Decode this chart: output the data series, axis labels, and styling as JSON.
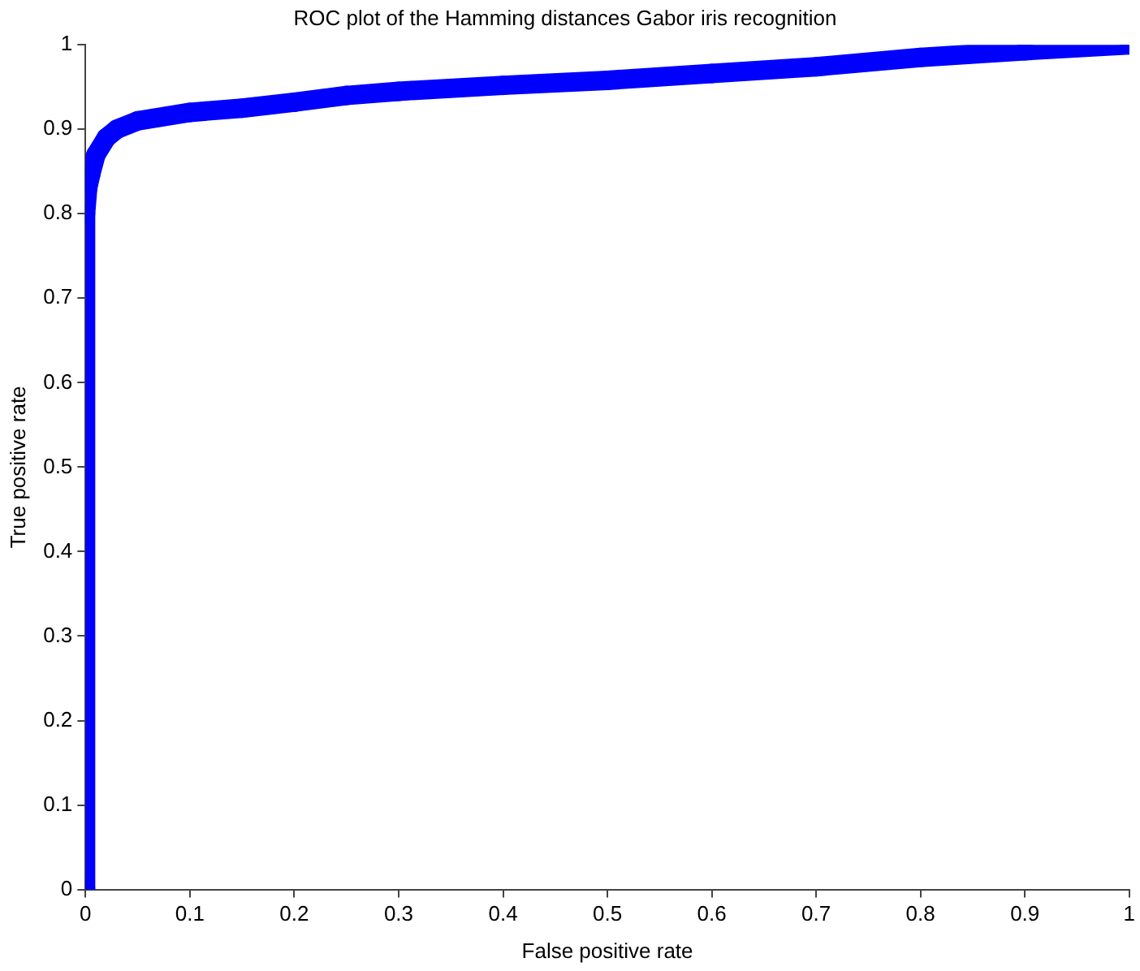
{
  "chart_data": {
    "type": "line",
    "title": "ROC plot of the Hamming distances Gabor iris recognition",
    "xlabel": "False positive rate",
    "ylabel": "True positive rate",
    "x": [
      0,
      0,
      0.002,
      0.005,
      0.01,
      0.02,
      0.03,
      0.05,
      0.1,
      0.15,
      0.2,
      0.25,
      0.3,
      0.4,
      0.5,
      0.6,
      0.7,
      0.8,
      0.9,
      1
    ],
    "series": [
      {
        "color": "#0000ff",
        "values": [
          0,
          0.8,
          0.83,
          0.847,
          0.87,
          0.89,
          0.9,
          0.91,
          0.92,
          0.925,
          0.932,
          0.94,
          0.945,
          0.952,
          0.958,
          0.966,
          0.974,
          0.985,
          0.993,
          1
        ]
      }
    ],
    "xlim": [
      0,
      1
    ],
    "ylim": [
      0,
      1
    ],
    "xticks": [
      0,
      0.1,
      0.2,
      0.3,
      0.4,
      0.5,
      0.6,
      0.7,
      0.8,
      0.9,
      1
    ],
    "yticks": [
      0,
      0.1,
      0.2,
      0.3,
      0.4,
      0.5,
      0.6,
      0.7,
      0.8,
      0.9,
      1
    ],
    "grid": false,
    "legend": false,
    "marker": "circle",
    "line_style": "solid"
  }
}
